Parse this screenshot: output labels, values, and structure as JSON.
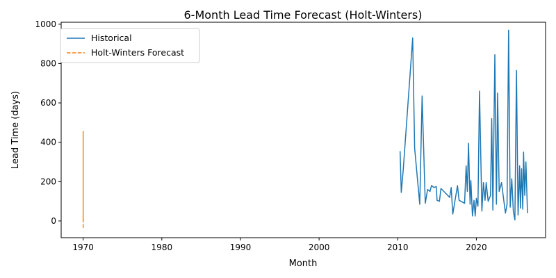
{
  "chart_data": {
    "type": "line",
    "title": "6-Month Lead Time Forecast (Holt-Winters)",
    "xlabel": "Month",
    "ylabel": "Lead Time (days)",
    "xlim": [
      1967.2,
      2028.8
    ],
    "ylim": [
      -85,
      1010
    ],
    "x_ticks": [
      1970,
      1980,
      1990,
      2000,
      2010,
      2020
    ],
    "y_ticks": [
      0,
      200,
      400,
      600,
      800,
      1000
    ],
    "grid": false,
    "legend_position": "top-left",
    "series": [
      {
        "name": "Historical",
        "color": "#1f77b4",
        "style": "solid",
        "points": [
          [
            2010.3,
            355
          ],
          [
            2010.45,
            145
          ],
          [
            2010.7,
            260
          ],
          [
            2011.9,
            930
          ],
          [
            2012.15,
            370
          ],
          [
            2012.8,
            85
          ],
          [
            2013.1,
            635
          ],
          [
            2013.5,
            90
          ],
          [
            2013.8,
            160
          ],
          [
            2014.1,
            150
          ],
          [
            2014.3,
            180
          ],
          [
            2014.6,
            170
          ],
          [
            2014.9,
            175
          ],
          [
            2015.0,
            105
          ],
          [
            2015.3,
            100
          ],
          [
            2015.5,
            165
          ],
          [
            2016.6,
            120
          ],
          [
            2016.8,
            170
          ],
          [
            2017.0,
            35
          ],
          [
            2017.6,
            180
          ],
          [
            2017.8,
            105
          ],
          [
            2018.5,
            90
          ],
          [
            2018.7,
            280
          ],
          [
            2018.85,
            150
          ],
          [
            2019.0,
            395
          ],
          [
            2019.2,
            85
          ],
          [
            2019.3,
            205
          ],
          [
            2019.5,
            25
          ],
          [
            2019.7,
            105
          ],
          [
            2019.85,
            25
          ],
          [
            2020.0,
            115
          ],
          [
            2020.2,
            75
          ],
          [
            2020.4,
            660
          ],
          [
            2020.7,
            50
          ],
          [
            2020.9,
            195
          ],
          [
            2021.1,
            105
          ],
          [
            2021.25,
            195
          ],
          [
            2021.5,
            100
          ],
          [
            2021.8,
            130
          ],
          [
            2021.95,
            520
          ],
          [
            2022.1,
            55
          ],
          [
            2022.35,
            845
          ],
          [
            2022.55,
            85
          ],
          [
            2022.7,
            650
          ],
          [
            2022.9,
            150
          ],
          [
            2023.2,
            195
          ],
          [
            2023.5,
            100
          ],
          [
            2023.7,
            40
          ],
          [
            2023.9,
            85
          ],
          [
            2024.1,
            970
          ],
          [
            2024.3,
            70
          ],
          [
            2024.5,
            215
          ],
          [
            2024.7,
            50
          ],
          [
            2024.9,
            5
          ],
          [
            2025.1,
            765
          ],
          [
            2025.3,
            30
          ],
          [
            2025.5,
            280
          ],
          [
            2025.6,
            65
          ],
          [
            2025.75,
            265
          ],
          [
            2025.9,
            60
          ],
          [
            2026.0,
            350
          ],
          [
            2026.15,
            130
          ],
          [
            2026.3,
            300
          ],
          [
            2026.5,
            40
          ]
        ]
      },
      {
        "name": "Holt-Winters Forecast",
        "color": "#ff7f0e",
        "style": "dashed",
        "points": [
          [
            1970.0,
            -35
          ],
          [
            1970.0,
            30
          ],
          [
            1970.0,
            455
          ],
          [
            1970.0,
            70
          ],
          [
            1970.0,
            10
          ],
          [
            1970.0,
            5
          ]
        ]
      }
    ]
  }
}
